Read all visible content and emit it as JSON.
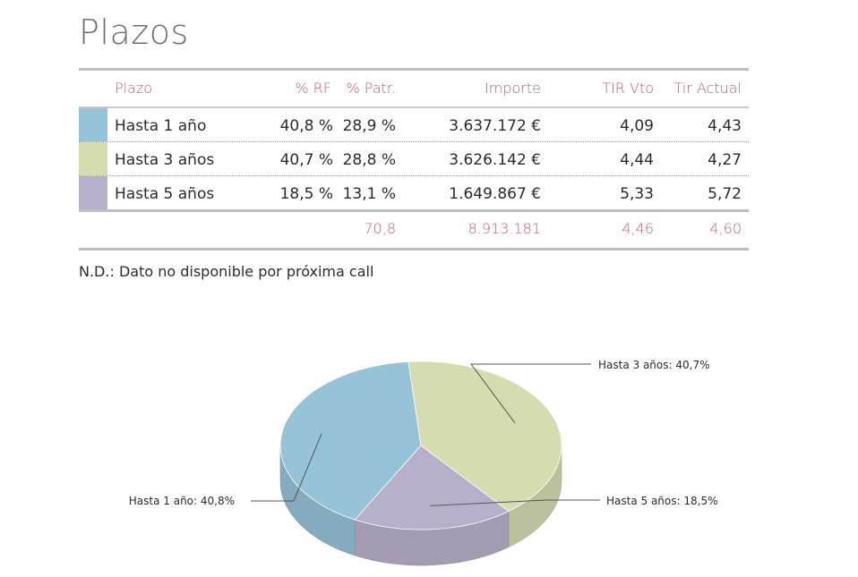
{
  "title": "Plazos",
  "table": {
    "headers": {
      "plazo": "Plazo",
      "rf": "% RF",
      "patr": "% Patr.",
      "importe": "Importe",
      "tir_vto": "TIR Vto",
      "tir_actual": "Tir Actual"
    },
    "rows": [
      {
        "plazo": "Hasta 1 año",
        "rf": "40,8 %",
        "patr": "28,9 %",
        "importe": "3.637.172 €",
        "tir_vto": "4,09",
        "tir_actual": "4,43",
        "color": "#97c3d8"
      },
      {
        "plazo": "Hasta 3 años",
        "rf": "40,7 %",
        "patr": "28,8 %",
        "importe": "3.626.142 €",
        "tir_vto": "4,44",
        "tir_actual": "4,27",
        "color": "#d4dcb0"
      },
      {
        "plazo": "Hasta 5 años",
        "rf": "18,5 %",
        "patr": "13,1 %",
        "importe": "1.649.867 €",
        "tir_vto": "5,33",
        "tir_actual": "5,72",
        "color": "#b8b0ca"
      }
    ],
    "totals": {
      "patr": "70,8",
      "importe": "8.913.181",
      "tir_vto": "4,46",
      "tir_actual": "4,60"
    }
  },
  "note": "N.D.: Dato no disponible por próxima call",
  "chart_data": {
    "type": "pie",
    "categories": [
      "Hasta 1 año",
      "Hasta 3 años",
      "Hasta 5 años"
    ],
    "values": [
      40.8,
      40.7,
      18.5
    ],
    "labels": [
      "Hasta 1 año: 40,8%",
      "Hasta 3 años: 40,7%",
      "Hasta 5 años: 18,5%"
    ],
    "colors": [
      "#97c3d8",
      "#d4dcb0",
      "#b8b0ca"
    ]
  }
}
